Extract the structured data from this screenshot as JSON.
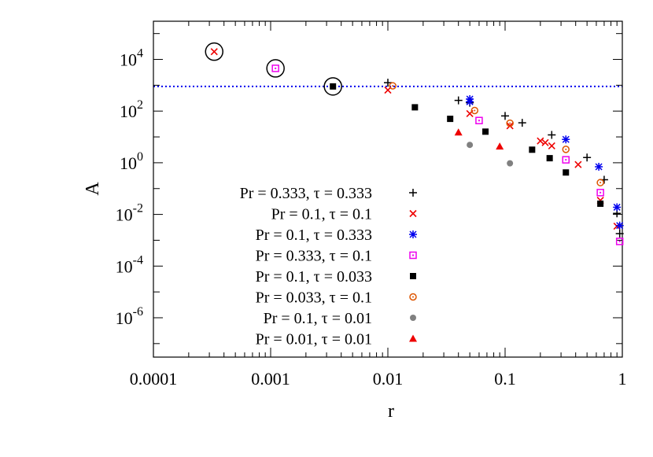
{
  "chart_data": {
    "type": "scatter",
    "title": "",
    "xlabel": "r",
    "ylabel": "A",
    "xscale": "log",
    "yscale": "log",
    "xlim": [
      0.0001,
      1
    ],
    "ylim": [
      3e-08,
      300000
    ],
    "x_ticks": [
      {
        "value": 0.0001,
        "label": "0.0001"
      },
      {
        "value": 0.001,
        "label": "0.001"
      },
      {
        "value": 0.01,
        "label": "0.01"
      },
      {
        "value": 0.1,
        "label": "0.1"
      },
      {
        "value": 1,
        "label": "1"
      }
    ],
    "y_ticks": [
      {
        "value": 10000,
        "base": "10",
        "exp": "4"
      },
      {
        "value": 100,
        "base": "10",
        "exp": "2"
      },
      {
        "value": 1,
        "base": "10",
        "exp": "0"
      },
      {
        "value": 0.01,
        "base": "10",
        "exp": "-2"
      },
      {
        "value": 0.0001,
        "base": "10",
        "exp": "-4"
      },
      {
        "value": 1e-06,
        "base": "10",
        "exp": "-6"
      }
    ],
    "legend_position": "bottom-left",
    "reference_line": {
      "y": 900,
      "style": "dotted",
      "color": "#0000ee"
    },
    "series": [
      {
        "name": "Pr = 0.333, τ = 0.333",
        "marker": "plus",
        "color": "#000000",
        "points": [
          [
            0.01,
            1250
          ],
          [
            0.04,
            260
          ],
          [
            0.05,
            210
          ],
          [
            0.1,
            65
          ],
          [
            0.14,
            35
          ],
          [
            0.25,
            12
          ],
          [
            0.5,
            1.6
          ],
          [
            0.7,
            0.22
          ],
          [
            0.9,
            0.011
          ],
          [
            0.95,
            0.0018
          ]
        ]
      },
      {
        "name": "Pr = 0.1, τ = 0.1",
        "marker": "cross",
        "color": "#ee0000",
        "points": [
          [
            0.00033,
            20000
          ],
          [
            0.01,
            650
          ],
          [
            0.05,
            80
          ],
          [
            0.11,
            27
          ],
          [
            0.2,
            7
          ],
          [
            0.22,
            6
          ],
          [
            0.25,
            4.5
          ],
          [
            0.42,
            0.85
          ],
          [
            0.65,
            0.035
          ],
          [
            0.9,
            0.0035
          ]
        ]
      },
      {
        "name": "Pr = 0.1, τ = 0.333",
        "marker": "star",
        "color": "#0000ee",
        "points": [
          [
            0.05,
            290
          ],
          [
            0.05,
            230
          ],
          [
            0.33,
            8
          ],
          [
            0.63,
            0.7
          ],
          [
            0.9,
            0.019
          ],
          [
            0.95,
            0.0037
          ]
        ]
      },
      {
        "name": "Pr = 0.333, τ = 0.1",
        "marker": "box",
        "color": "#ee00ee",
        "points": [
          [
            0.0011,
            4500
          ],
          [
            0.06,
            43
          ],
          [
            0.33,
            1.3
          ],
          [
            0.65,
            0.07
          ],
          [
            0.95,
            0.0009
          ]
        ]
      },
      {
        "name": "Pr = 0.1, τ = 0.033",
        "marker": "fbox",
        "color": "#000000",
        "points": [
          [
            0.0034,
            900
          ],
          [
            0.017,
            140
          ],
          [
            0.034,
            50
          ],
          [
            0.068,
            16
          ],
          [
            0.17,
            3.2
          ],
          [
            0.24,
            1.5
          ],
          [
            0.33,
            0.42
          ],
          [
            0.65,
            0.026
          ]
        ]
      },
      {
        "name": "Pr = 0.033, τ = 0.1",
        "marker": "circle",
        "color": "#dd5500",
        "points": [
          [
            0.011,
            950
          ],
          [
            0.055,
            105
          ],
          [
            0.11,
            34
          ],
          [
            0.33,
            3.3
          ],
          [
            0.65,
            0.17
          ]
        ]
      },
      {
        "name": "Pr = 0.1, τ = 0.01",
        "marker": "fcircle",
        "color": "#808080",
        "points": [
          [
            0.05,
            4.9
          ],
          [
            0.11,
            0.95
          ]
        ]
      },
      {
        "name": "Pr = 0.01, τ = 0.01",
        "marker": "ftriangle",
        "color": "#ee0000",
        "points": [
          [
            0.04,
            15
          ],
          [
            0.09,
            4.3
          ]
        ]
      }
    ],
    "highlighted_points": [
      [
        0.00033,
        20000
      ],
      [
        0.0011,
        4500
      ],
      [
        0.0034,
        900
      ]
    ]
  }
}
